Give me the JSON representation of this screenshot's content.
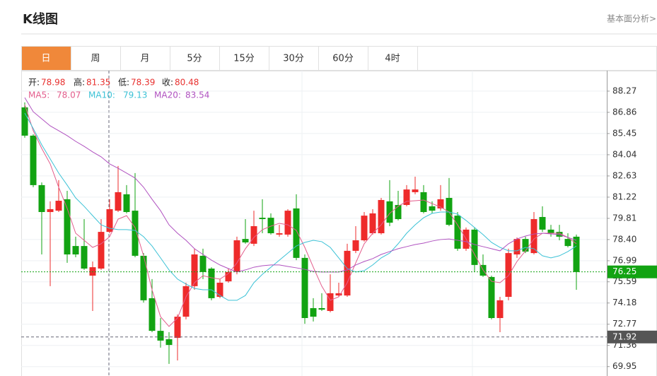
{
  "header": {
    "title": "K线图",
    "link": "基本面分析>"
  },
  "tabs": [
    "日",
    "周",
    "月",
    "5分",
    "15分",
    "30分",
    "60分",
    "4时"
  ],
  "active_tab": 0,
  "chart_data": {
    "type": "candlestick",
    "info": [
      {
        "label": "开:",
        "value": 78.98
      },
      {
        "label": "高:",
        "value": 81.35
      },
      {
        "label": "低:",
        "value": 78.39
      },
      {
        "label": "收:",
        "value": 80.48
      }
    ],
    "info_value_color": "#e8312f",
    "up_color": "#ee2b2b",
    "down_color": "#12a312",
    "open": [
      87.19,
      85.31,
      82.02,
      80.23,
      80.32,
      81.08,
      77.97,
      77.97,
      76.0,
      76.47,
      78.91,
      80.32,
      81.41,
      80.32,
      77.32,
      74.5,
      72.33,
      71.77,
      71.86,
      73.27,
      75.3,
      77.32,
      76.47,
      74.59,
      75.62,
      76.24,
      78.44,
      78.12,
      79.85,
      79.85,
      78.73,
      78.73,
      80.47,
      77.18,
      73.84,
      73.84,
      73.65,
      74.68,
      74.68,
      77.65,
      78.35,
      78.82,
      78.82,
      80.94,
      80.7,
      80.7,
      81.55,
      81.55,
      80.61,
      80.47,
      81.17,
      79.99,
      77.79,
      79.06,
      76.71,
      75.91,
      73.18,
      74.59,
      77.41,
      78.44,
      77.5,
      79.9,
      79.06,
      78.91,
      78.44,
      78.59
    ],
    "high": [
      87.52,
      85.4,
      82.2,
      80.94,
      82.35,
      81.64,
      78.59,
      79.76,
      76.94,
      79.76,
      81.08,
      83.29,
      82.02,
      82.82,
      77.5,
      75.77,
      73.18,
      72.24,
      73.42,
      75.53,
      77.79,
      77.79,
      76.56,
      75.77,
      76.47,
      78.59,
      79.76,
      80.32,
      81.08,
      80.14,
      79.38,
      80.42,
      81.41,
      77.41,
      74.5,
      74.83,
      76.09,
      75.53,
      78.12,
      79.29,
      80.23,
      80.42,
      81.17,
      82.35,
      81.64,
      82.02,
      82.58,
      82.02,
      80.94,
      82.02,
      82.49,
      80.23,
      79.2,
      79.2,
      77.41,
      76.0,
      74.59,
      77.79,
      78.54,
      78.59,
      80.23,
      80.61,
      79.38,
      79.38,
      78.82,
      78.73
    ],
    "low": [
      85.17,
      81.88,
      77.41,
      75.3,
      80.23,
      76.85,
      77.22,
      76.38,
      73.65,
      76.38,
      78.82,
      80.23,
      80.14,
      77.22,
      74.21,
      72.24,
      71.21,
      70.13,
      70.36,
      73.09,
      75.06,
      75.77,
      74.36,
      74.5,
      75.53,
      76.09,
      78.12,
      77.97,
      78.82,
      78.73,
      78.59,
      78.59,
      77.03,
      72.8,
      72.95,
      73.65,
      73.56,
      74.59,
      74.59,
      77.5,
      78.26,
      78.73,
      78.73,
      79.29,
      79.67,
      80.61,
      81.41,
      80.14,
      80.14,
      80.32,
      79.29,
      77.65,
      77.65,
      76.24,
      75.91,
      73.09,
      72.24,
      74.36,
      77.18,
      77.5,
      77.41,
      78.91,
      78.59,
      78.35,
      77.88,
      75.06
    ],
    "close": [
      85.31,
      82.02,
      80.23,
      80.42,
      80.98,
      77.41,
      77.41,
      76.47,
      76.56,
      78.91,
      80.42,
      81.55,
      80.23,
      77.32,
      74.36,
      72.33,
      71.68,
      71.39,
      73.27,
      75.3,
      77.41,
      76.24,
      74.5,
      75.53,
      76.24,
      78.35,
      78.21,
      79.29,
      79.76,
      78.82,
      78.82,
      80.32,
      77.18,
      73.18,
      73.27,
      73.74,
      74.83,
      74.83,
      77.65,
      78.35,
      79.99,
      80.14,
      81.03,
      79.52,
      79.76,
      81.73,
      81.73,
      80.23,
      80.32,
      81.08,
      79.38,
      77.79,
      79.06,
      76.71,
      76.0,
      73.18,
      74.36,
      77.5,
      78.44,
      77.6,
      79.76,
      79.06,
      78.82,
      78.59,
      77.97,
      76.24
    ],
    "series": [
      {
        "label": "MA5:",
        "current": 78.07,
        "color": "#e35d8c",
        "values": [
          87.37,
          85.64,
          84.46,
          83.43,
          81.88,
          80.47,
          78.82,
          78.35,
          77.88,
          78.12,
          78.59,
          79.76,
          79.99,
          79.2,
          77.32,
          75.06,
          73.27,
          72.62,
          73.18,
          74.59,
          75.53,
          76.0,
          75.86,
          75.77,
          76.14,
          76.85,
          77.79,
          78.54,
          79.06,
          79.29,
          79.48,
          79.38,
          79.01,
          77.88,
          76.56,
          75.3,
          74.36,
          74.59,
          75.53,
          76.85,
          78.12,
          78.82,
          79.38,
          80.14,
          80.61,
          80.94,
          80.98,
          81.03,
          80.79,
          80.56,
          80.23,
          79.38,
          78.44,
          77.41,
          76.38,
          75.62,
          75.53,
          76.0,
          76.94,
          77.65,
          78.44,
          78.82,
          78.82,
          78.82,
          78.54,
          78.12
        ]
      },
      {
        "label": "MA10:",
        "current": 79.13,
        "color": "#3cc2d6",
        "values": [
          86.81,
          85.78,
          84.7,
          83.76,
          82.82,
          82.02,
          81.17,
          80.61,
          79.99,
          79.38,
          79.15,
          79.06,
          79.06,
          79.01,
          78.59,
          77.97,
          77.18,
          76.38,
          75.77,
          75.44,
          75.15,
          75.06,
          75.06,
          74.68,
          74.36,
          74.36,
          74.68,
          75.53,
          76.09,
          76.56,
          77.03,
          77.5,
          77.97,
          78.21,
          78.35,
          78.26,
          77.88,
          77.18,
          76.47,
          76.24,
          76.33,
          76.71,
          77.18,
          77.5,
          78.12,
          78.82,
          79.38,
          79.85,
          80.14,
          80.23,
          80.23,
          80.09,
          79.67,
          79.2,
          78.73,
          78.21,
          77.88,
          77.65,
          77.65,
          77.88,
          77.79,
          77.32,
          77.18,
          77.32,
          77.6,
          77.97
        ]
      },
      {
        "label": "MA20:",
        "current": 83.54,
        "color": "#b052c0",
        "values": [
          87.84,
          86.9,
          86.43,
          85.96,
          85.64,
          85.31,
          84.93,
          84.6,
          84.23,
          83.9,
          83.43,
          83.14,
          82.82,
          82.49,
          81.88,
          81.08,
          80.32,
          79.38,
          78.82,
          78.35,
          77.79,
          77.41,
          77.03,
          76.71,
          76.47,
          76.24,
          76.38,
          76.56,
          76.66,
          76.71,
          76.71,
          76.61,
          76.52,
          76.42,
          76.28,
          76.24,
          76.24,
          76.24,
          76.38,
          76.71,
          76.94,
          77.13,
          77.41,
          77.6,
          77.79,
          77.93,
          78.07,
          78.16,
          78.3,
          78.4,
          78.44,
          78.35,
          78.26,
          78.07,
          77.93,
          77.79,
          77.65,
          78.12,
          78.44,
          78.63,
          78.77,
          78.82,
          78.77,
          78.73,
          78.54,
          78.35
        ]
      }
    ],
    "last_price": 76.25,
    "last_price_color": "#12a312",
    "crosshair_price": 71.92,
    "crosshair_color": "#555555",
    "ylim": [
      69.42,
      89.63
    ],
    "yticks": [
      88.27,
      86.86,
      85.45,
      84.04,
      82.63,
      81.22,
      79.81,
      {
        "value": 78.4,
        "label": "78.40"
      },
      76.99,
      75.59,
      74.18,
      72.77,
      71.36,
      69.95
    ],
    "grid": true
  }
}
